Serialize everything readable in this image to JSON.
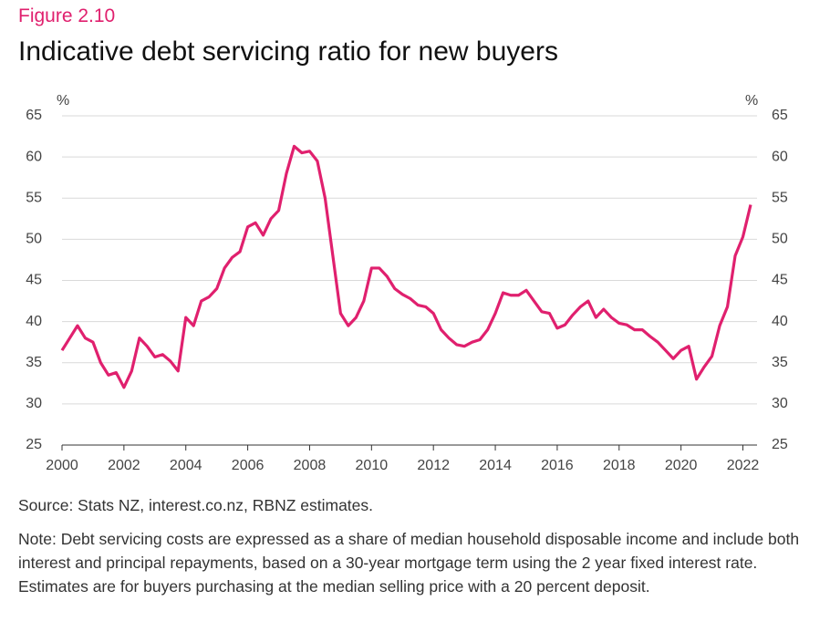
{
  "chart_data": {
    "type": "line",
    "figure_label": "Figure 2.10",
    "title": "Indicative debt servicing ratio for new buyers",
    "y_label": "%",
    "source": "Source: Stats NZ, interest.co.nz, RBNZ estimates.",
    "note": "Note: Debt servicing costs are expressed as a share of median household disposable income and include both interest and principal repayments, based on a 30-year mortgage term using the 2 year fixed interest rate. Estimates are for buyers purchasing at the median selling price with a 20 percent deposit.",
    "x": [
      2000,
      2000.25,
      2000.5,
      2000.75,
      2001,
      2001.25,
      2001.5,
      2001.75,
      2002,
      2002.25,
      2002.5,
      2002.75,
      2003,
      2003.25,
      2003.5,
      2003.75,
      2004,
      2004.25,
      2004.5,
      2004.75,
      2005,
      2005.25,
      2005.5,
      2005.75,
      2006,
      2006.25,
      2006.5,
      2006.75,
      2007,
      2007.25,
      2007.5,
      2007.75,
      2008,
      2008.25,
      2008.5,
      2008.75,
      2009,
      2009.25,
      2009.5,
      2009.75,
      2010,
      2010.25,
      2010.5,
      2010.75,
      2011,
      2011.25,
      2011.5,
      2011.75,
      2012,
      2012.25,
      2012.5,
      2012.75,
      2013,
      2013.25,
      2013.5,
      2013.75,
      2014,
      2014.25,
      2014.5,
      2014.75,
      2015,
      2015.25,
      2015.5,
      2015.75,
      2016,
      2016.25,
      2016.5,
      2016.75,
      2017,
      2017.25,
      2017.5,
      2017.75,
      2018,
      2018.25,
      2018.5,
      2018.75,
      2019,
      2019.25,
      2019.5,
      2019.75,
      2020,
      2020.25,
      2020.5,
      2020.75,
      2021,
      2021.25,
      2021.5,
      2021.75,
      2022,
      2022.25
    ],
    "series": [
      {
        "name": "Debt servicing ratio",
        "color": "#e0206e",
        "values": [
          36.5,
          38,
          39.5,
          38,
          37.5,
          35,
          33.5,
          33.8,
          32,
          34,
          38,
          37,
          35.7,
          36,
          35.2,
          34,
          40.5,
          39.5,
          42.5,
          43,
          44,
          46.5,
          47.8,
          48.5,
          51.5,
          52,
          50.5,
          52.5,
          53.5,
          58,
          61.3,
          60.5,
          60.7,
          59.5,
          55,
          48,
          41,
          39.5,
          40.5,
          42.5,
          46.5,
          46.5,
          45.5,
          44,
          43.3,
          42.8,
          42,
          41.8,
          41,
          39,
          38,
          37.2,
          37,
          37.5,
          37.8,
          39,
          41,
          43.5,
          43.2,
          43.2,
          43.8,
          42.5,
          41.2,
          41,
          39.2,
          39.6,
          40.8,
          41.8,
          42.5,
          40.5,
          41.5,
          40.5,
          39.8,
          39.6,
          39,
          39,
          38.2,
          37.5,
          36.5,
          35.5,
          36.5,
          37,
          33,
          34.5,
          35.8,
          39.5,
          41.8,
          48,
          50.3,
          54.2
        ]
      }
    ],
    "xlim": [
      2000,
      2022.25
    ],
    "xticks": [
      2000,
      2002,
      2004,
      2006,
      2008,
      2010,
      2012,
      2014,
      2016,
      2018,
      2020,
      2022
    ],
    "ylim": [
      25,
      65
    ],
    "yticks": [
      25,
      30,
      35,
      40,
      45,
      50,
      55,
      60,
      65
    ],
    "grid": true
  }
}
